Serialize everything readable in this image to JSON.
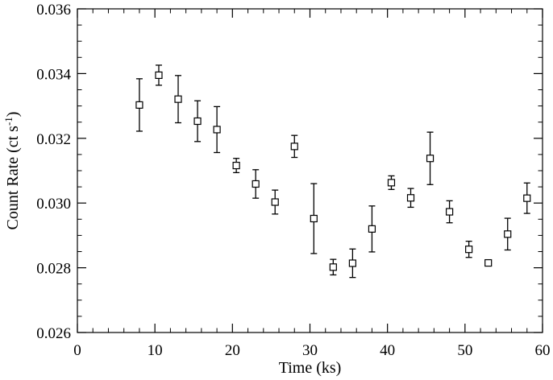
{
  "chart_data": {
    "type": "scatter",
    "xlabel": "Time (ks)",
    "ylabel_main": "Count Rate (ct s",
    "ylabel_sup": "-1",
    "ylabel_close": ")",
    "xlim": [
      0,
      60
    ],
    "ylim": [
      0.026,
      0.036
    ],
    "x_ticks": [
      0,
      10,
      20,
      30,
      40,
      50,
      60
    ],
    "x_tick_labels": [
      "0",
      "10",
      "20",
      "30",
      "40",
      "50",
      "60"
    ],
    "y_ticks": [
      0.026,
      0.028,
      0.03,
      0.032,
      0.034,
      0.036
    ],
    "y_tick_labels": [
      "0.026",
      "0.028",
      "0.030",
      "0.032",
      "0.034",
      "0.036"
    ],
    "x_minor_step": 2,
    "y_minor_step": 0.0005,
    "grid": false,
    "marker": "open-square",
    "points": [
      {
        "x": 8.0,
        "y": 0.03303,
        "err": 0.00081
      },
      {
        "x": 10.5,
        "y": 0.03395,
        "err": 0.00031
      },
      {
        "x": 13.0,
        "y": 0.03321,
        "err": 0.00073
      },
      {
        "x": 15.5,
        "y": 0.03253,
        "err": 0.00063
      },
      {
        "x": 18.0,
        "y": 0.03227,
        "err": 0.00071
      },
      {
        "x": 20.5,
        "y": 0.03116,
        "err": 0.00022
      },
      {
        "x": 23.0,
        "y": 0.03059,
        "err": 0.00044
      },
      {
        "x": 25.5,
        "y": 0.03003,
        "err": 0.00037
      },
      {
        "x": 28.0,
        "y": 0.03175,
        "err": 0.00034
      },
      {
        "x": 30.5,
        "y": 0.02952,
        "err": 0.00108
      },
      {
        "x": 33.0,
        "y": 0.02802,
        "err": 0.00024
      },
      {
        "x": 35.5,
        "y": 0.02814,
        "err": 0.00044
      },
      {
        "x": 38.0,
        "y": 0.0292,
        "err": 0.00071
      },
      {
        "x": 40.5,
        "y": 0.03063,
        "err": 0.00021
      },
      {
        "x": 43.0,
        "y": 0.03016,
        "err": 0.00029
      },
      {
        "x": 45.5,
        "y": 0.03138,
        "err": 0.00081
      },
      {
        "x": 48.0,
        "y": 0.02973,
        "err": 0.00034
      },
      {
        "x": 50.5,
        "y": 0.02857,
        "err": 0.00025
      },
      {
        "x": 53.0,
        "y": 0.02815,
        "err": 9e-05
      },
      {
        "x": 55.5,
        "y": 0.02904,
        "err": 0.00049
      },
      {
        "x": 58.0,
        "y": 0.03015,
        "err": 0.00047
      }
    ]
  }
}
